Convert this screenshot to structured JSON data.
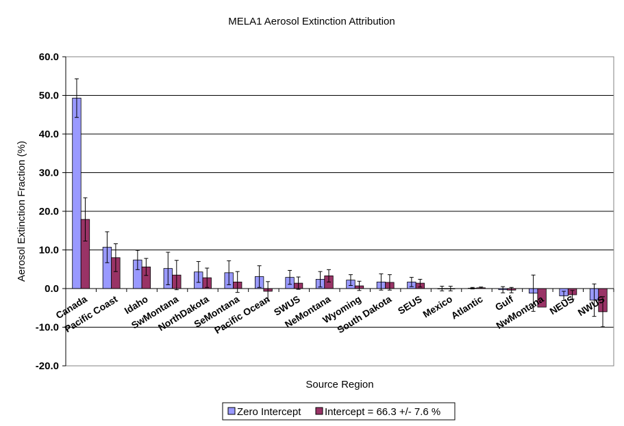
{
  "chart_data": {
    "type": "bar",
    "title": "MELA1 Aerosol Extinction Attribution",
    "xlabel": "Source Region",
    "ylabel": "Aerosol Extinction Fraction (%)",
    "ylim": [
      -20,
      60
    ],
    "yticks": [
      "60.0",
      "50.0",
      "40.0",
      "30.0",
      "20.0",
      "10.0",
      "0.0",
      "-10.0",
      "-20.0"
    ],
    "grid": true,
    "legend_position": "bottom",
    "categories": [
      "Canada",
      "Pacific Coast",
      "Idaho",
      "SwMontana",
      "NorthDakota",
      "SeMontana",
      "Pacific Ocean",
      "SWUS",
      "NeMontana",
      "Wyoming",
      "South Dakota",
      "SEUS",
      "Mexico",
      "Atlantic",
      "Gulf",
      "NwMontana",
      "NEUS",
      "NWUS"
    ],
    "series": [
      {
        "name": "Zero Intercept",
        "color": "#9999ff",
        "values": [
          49.3,
          10.7,
          7.4,
          5.2,
          4.3,
          4.1,
          3.1,
          2.9,
          2.4,
          2.2,
          1.7,
          1.7,
          0.0,
          0.1,
          -0.3,
          -1.2,
          -1.9,
          -3.0
        ],
        "errors": [
          5.0,
          4.0,
          2.5,
          4.2,
          2.7,
          3.1,
          2.8,
          1.8,
          2.0,
          1.4,
          2.1,
          1.2,
          0.6,
          0.2,
          0.8,
          4.7,
          1.2,
          4.2
        ]
      },
      {
        "name": "Intercept = 66.3 +/- 7.6 %",
        "color": "#993366",
        "values": [
          17.9,
          8.0,
          5.6,
          3.5,
          2.8,
          1.7,
          -0.7,
          1.4,
          3.3,
          0.7,
          1.6,
          1.4,
          0.0,
          0.2,
          -0.4,
          -4.8,
          -1.6,
          -6.0
        ],
        "errors": [
          5.6,
          3.6,
          2.2,
          3.8,
          2.5,
          2.7,
          2.5,
          1.6,
          1.6,
          1.2,
          2.0,
          1.0,
          0.6,
          0.2,
          0.7,
          0.0,
          1.1,
          3.9
        ]
      }
    ]
  }
}
